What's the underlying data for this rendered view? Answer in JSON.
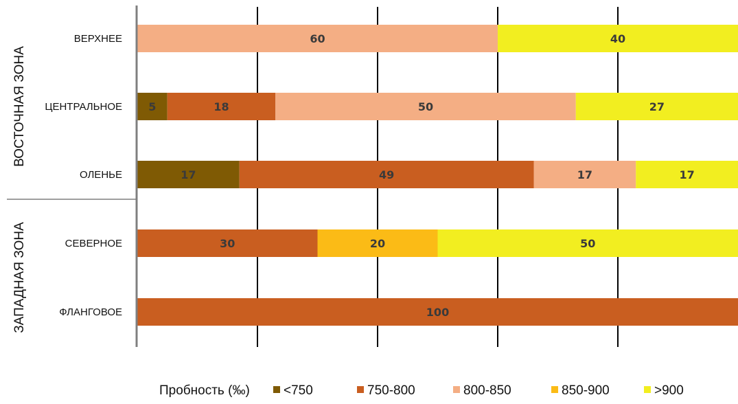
{
  "chart_data": {
    "type": "bar",
    "orientation": "horizontal",
    "stacked": true,
    "groups": [
      {
        "label": "ВОСТОЧНАЯ ЗОНА",
        "categories": [
          "ВЕРХНЕЕ",
          "ЦЕНТРАЛЬНОЕ",
          "ОЛЕНЬЕ"
        ]
      },
      {
        "label": "ЗАПАДНАЯ ЗОНА",
        "categories": [
          "СЕВЕРНОЕ",
          "ФЛАНГОВОЕ"
        ]
      }
    ],
    "categories": [
      "ВЕРХНЕЕ",
      "ЦЕНТРАЛЬНОЕ",
      "ОЛЕНЬЕ",
      "СЕВЕРНОЕ",
      "ФЛАНГОВОЕ"
    ],
    "series": [
      {
        "name": "<750",
        "color": "#7f5a04",
        "values": [
          0,
          5,
          17,
          0,
          0
        ]
      },
      {
        "name": "750-800",
        "color": "#c95e20",
        "values": [
          0,
          18,
          49,
          30,
          100
        ]
      },
      {
        "name": "800-850",
        "color": "#f4ae84",
        "values": [
          60,
          50,
          17,
          0,
          0
        ]
      },
      {
        "name": "850-900",
        "color": "#fbbb16",
        "values": [
          0,
          0,
          0,
          20,
          0
        ]
      },
      {
        "name": ">900",
        "color": "#f2ee20",
        "values": [
          40,
          27,
          17,
          50,
          0
        ]
      }
    ],
    "legend_title": "Пробность (‰)",
    "legend_position": "bottom",
    "xlim": [
      0,
      100
    ],
    "grid": "vertical"
  }
}
